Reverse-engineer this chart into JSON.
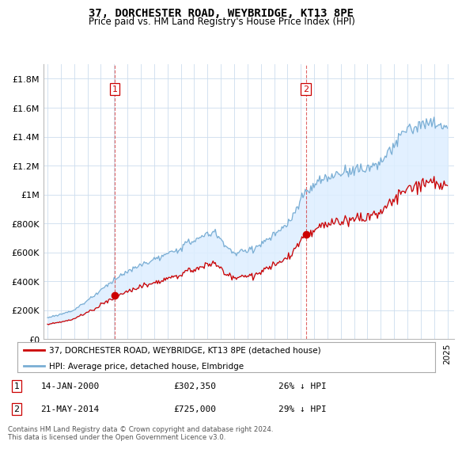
{
  "title": "37, DORCHESTER ROAD, WEYBRIDGE, KT13 8PE",
  "subtitle": "Price paid vs. HM Land Registry's House Price Index (HPI)",
  "ylim": [
    0,
    1900000
  ],
  "yticks": [
    0,
    200000,
    400000,
    600000,
    800000,
    1000000,
    1200000,
    1400000,
    1600000,
    1800000
  ],
  "ytick_labels": [
    "£0",
    "£200K",
    "£400K",
    "£600K",
    "£800K",
    "£1M",
    "£1.2M",
    "£1.4M",
    "£1.6M",
    "£1.8M"
  ],
  "hpi_color": "#7aaed4",
  "price_color": "#cc0000",
  "fill_color": "#ddeeff",
  "vline_color": "#cc0000",
  "sale1_year": 2000.04,
  "sale1_price": 302350,
  "sale2_year": 2014.38,
  "sale2_price": 725000,
  "legend_line1": "37, DORCHESTER ROAD, WEYBRIDGE, KT13 8PE (detached house)",
  "legend_line2": "HPI: Average price, detached house, Elmbridge",
  "footer": "Contains HM Land Registry data © Crown copyright and database right 2024.\nThis data is licensed under the Open Government Licence v3.0.",
  "background_color": "#ffffff",
  "grid_color": "#ccddee",
  "xstart": 1995,
  "xend": 2025
}
